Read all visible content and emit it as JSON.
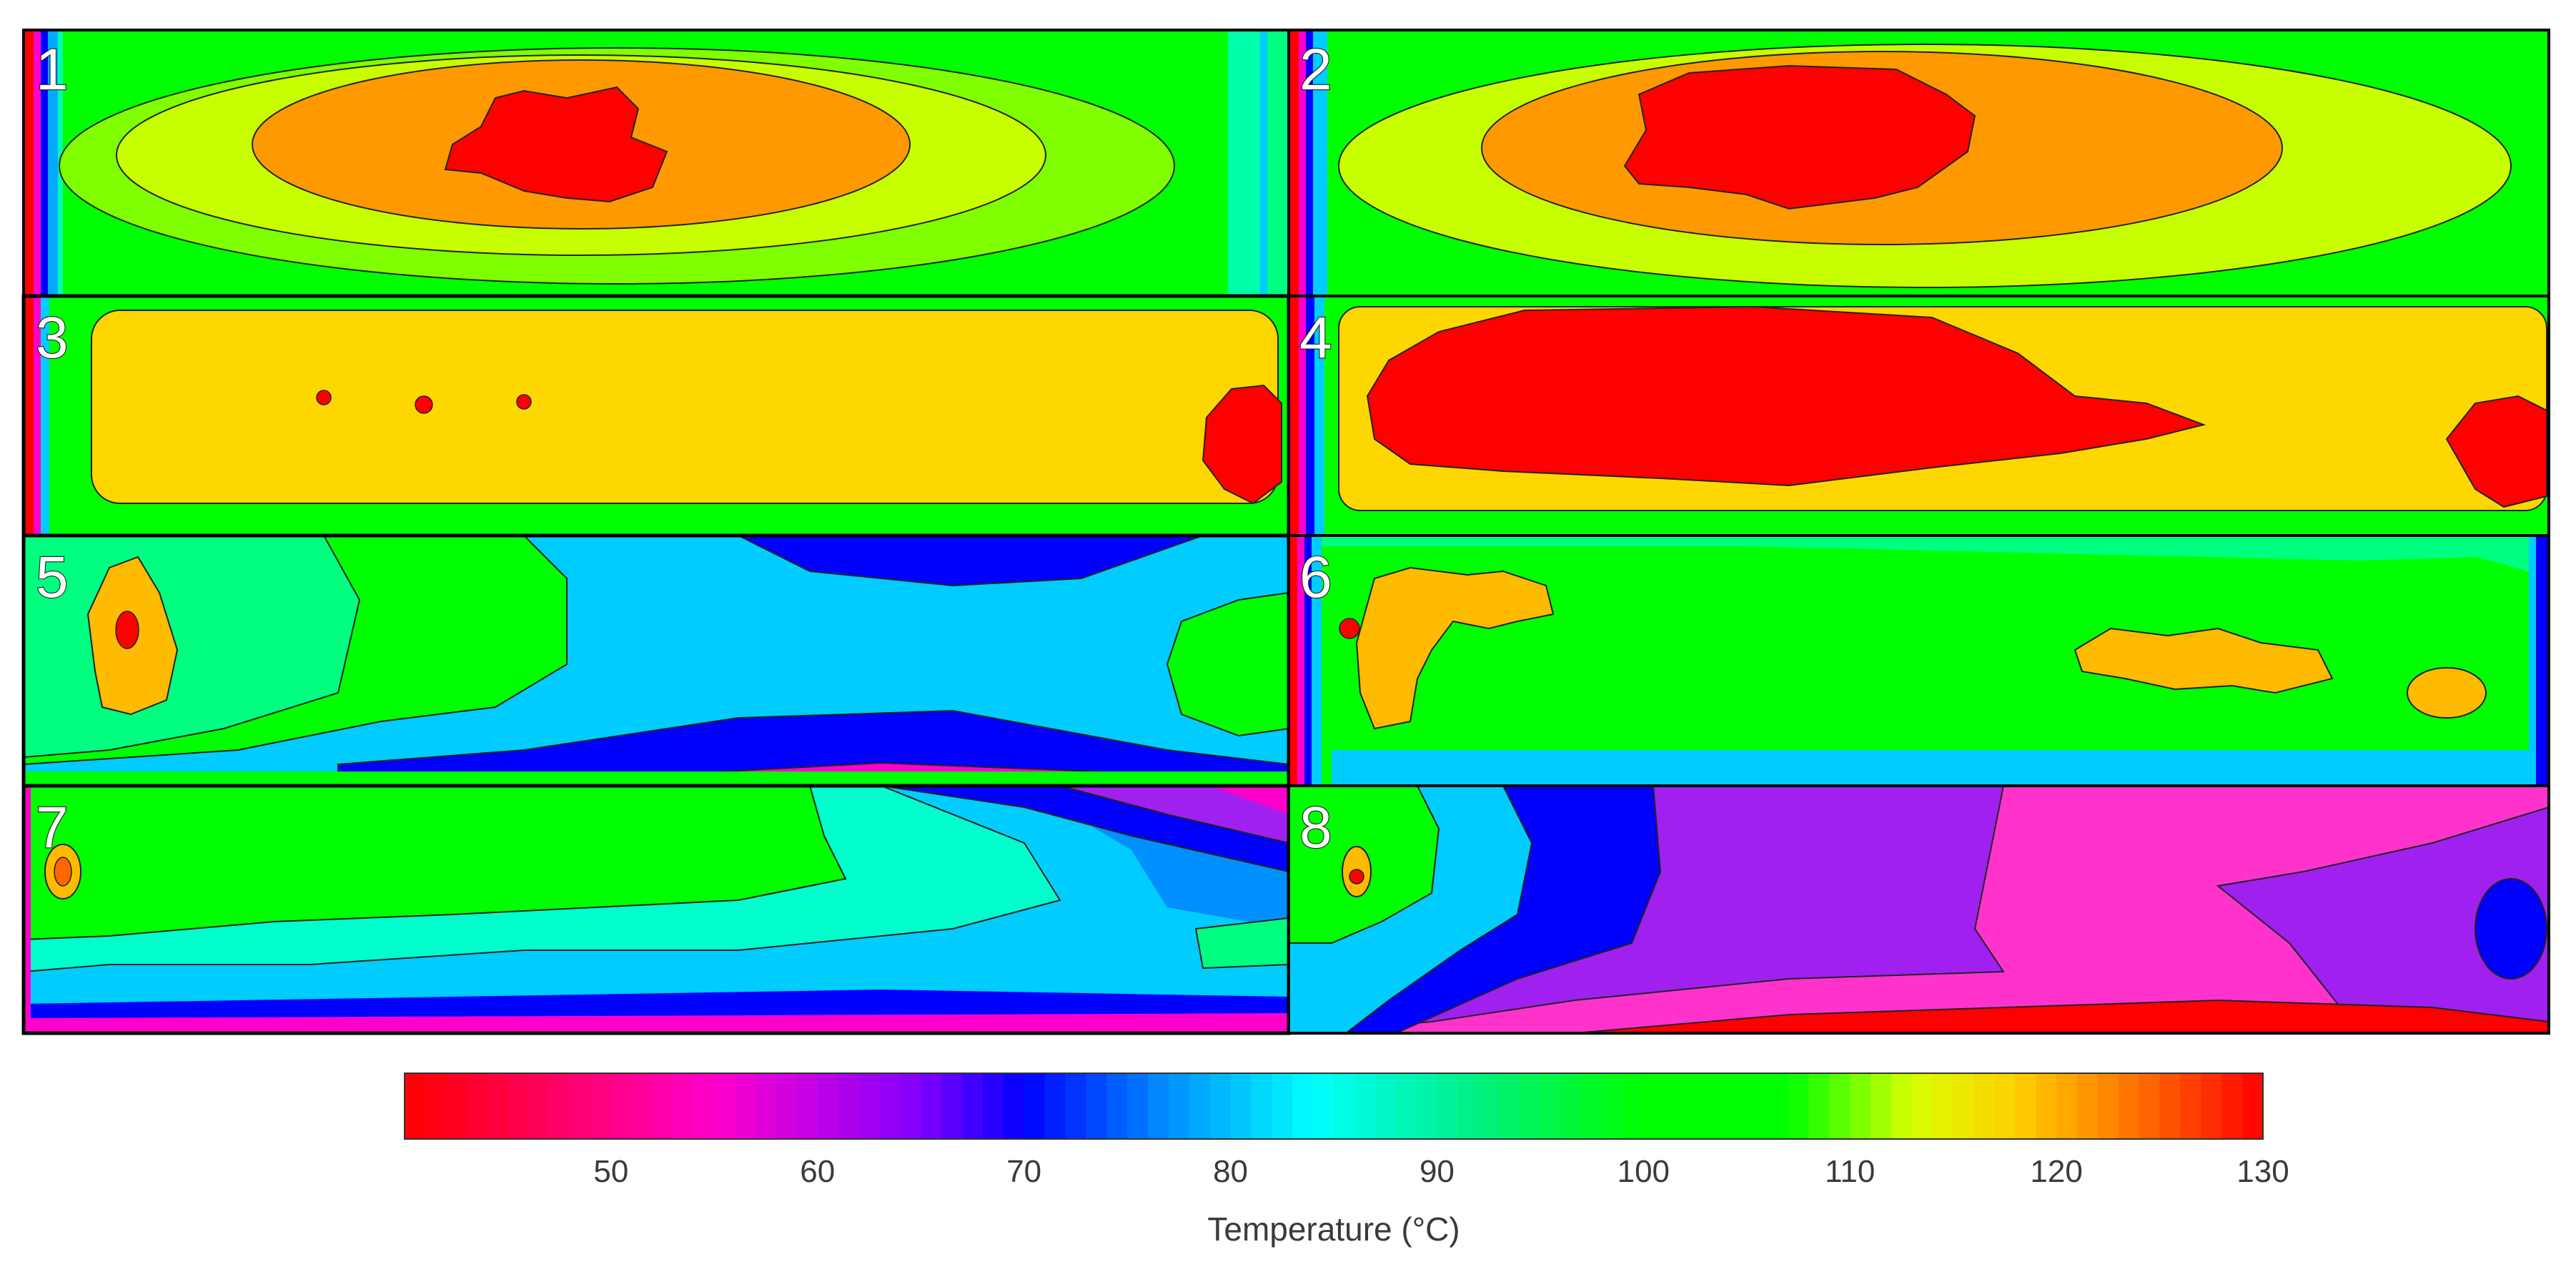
{
  "chart_data": {
    "type": "heatmap",
    "subtype": "filled-contour panels",
    "panels": [
      {
        "label": "1",
        "hot_zone": "center",
        "peak_level": "red (>125 °C) island in center",
        "edge": "cool left edge"
      },
      {
        "label": "2",
        "hot_zone": "center",
        "peak_level": "red island larger, center",
        "edge": "cool left edge"
      },
      {
        "label": "3",
        "hot_zone": "whole interior yellow",
        "peak_level": "red spot at right end",
        "edge": "cool left edge"
      },
      {
        "label": "4",
        "hot_zone": "left-center",
        "peak_level": "large red region plus red at right end",
        "edge": "cool left edge"
      },
      {
        "label": "5",
        "hot_zone": "left end",
        "peak_level": "orange/red spot at left, cyan-blue center",
        "edge": "magenta bands at top and bottom"
      },
      {
        "label": "6",
        "hot_zone": "scattered",
        "peak_level": "orange patches on green",
        "edge": "cyan bottom edge"
      },
      {
        "label": "7",
        "hot_zone": "left end",
        "peak_level": "green left, cyan-blue right",
        "edge": "magenta at bottom"
      },
      {
        "label": "8",
        "hot_zone": "far left",
        "peak_level": "green left, blue/purple/pink right",
        "edge": "red at bottom"
      }
    ],
    "colorbar": {
      "min": 40,
      "max": 130,
      "ticks": [
        50,
        60,
        70,
        80,
        90,
        100,
        110,
        120,
        130
      ],
      "label": "Temperature (°C)",
      "colormap": [
        {
          "value": 40,
          "color": "#ff0000"
        },
        {
          "value": 55,
          "color": "#ff00cc"
        },
        {
          "value": 65,
          "color": "#8000ff"
        },
        {
          "value": 70,
          "color": "#0000ff"
        },
        {
          "value": 77,
          "color": "#0090ff"
        },
        {
          "value": 84,
          "color": "#00ffff"
        },
        {
          "value": 92,
          "color": "#00f080"
        },
        {
          "value": 100,
          "color": "#00ff00"
        },
        {
          "value": 107,
          "color": "#00ff00"
        },
        {
          "value": 113,
          "color": "#d8ff00"
        },
        {
          "value": 118,
          "color": "#ffd000"
        },
        {
          "value": 123,
          "color": "#ff8000"
        },
        {
          "value": 130,
          "color": "#ff0000"
        }
      ]
    }
  },
  "colors": {
    "red": "#ff0000",
    "magenta": "#ff33cc",
    "purple": "#a020f0",
    "blue": "#0000ff",
    "midblue": "#0090ff",
    "cyan": "#00ccff",
    "teal": "#00ffbb",
    "green": "#00ff00",
    "lime": "#7fff00",
    "yellow": "#ffd700",
    "orange": "#ff9900"
  }
}
